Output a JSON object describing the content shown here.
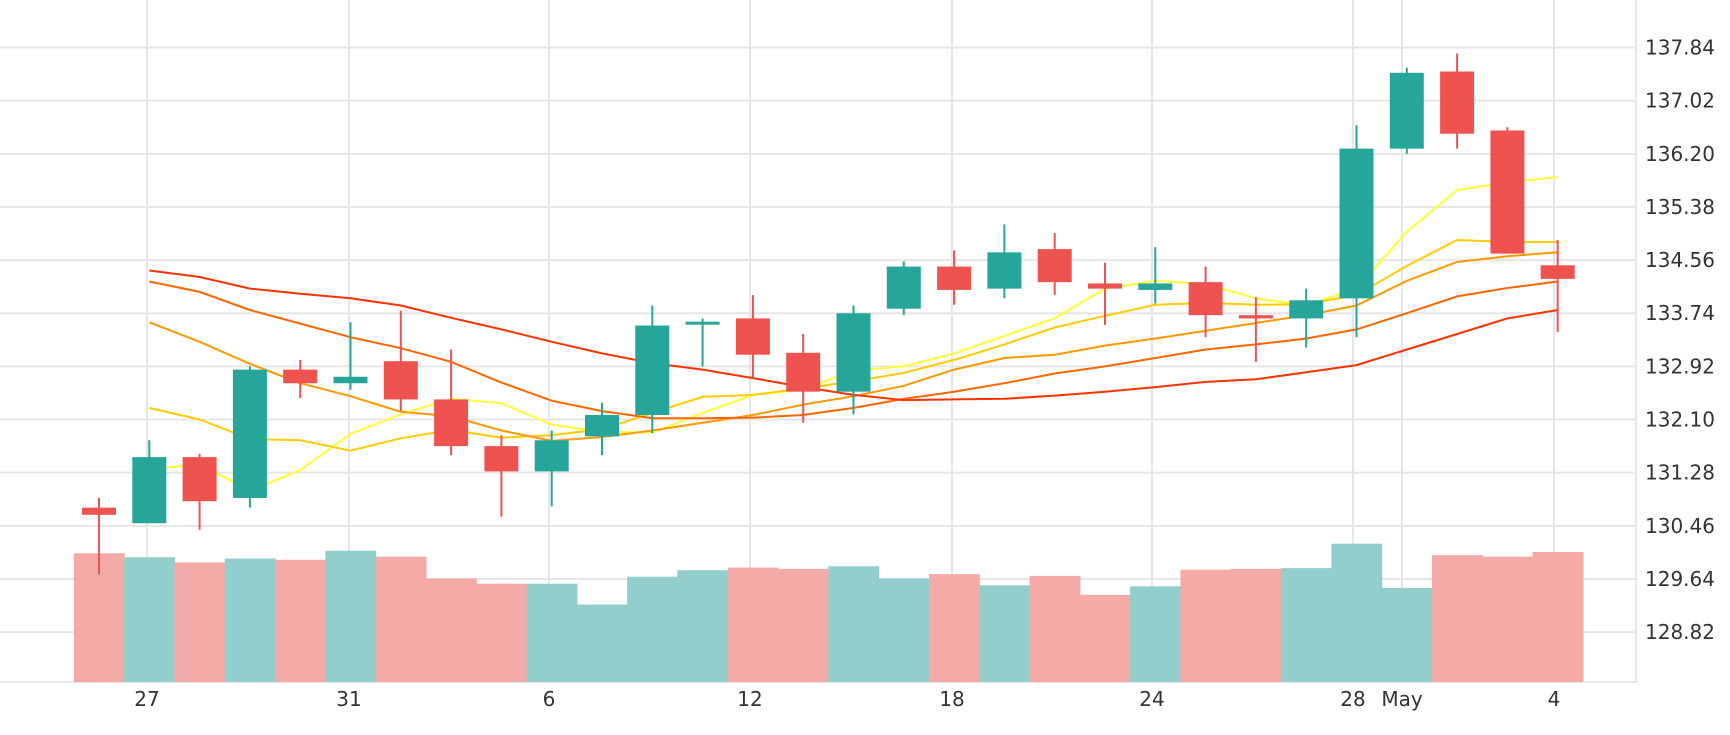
{
  "chart_data": {
    "type": "candlestick",
    "x_tick_labels": [
      "27",
      "31",
      "6",
      "12",
      "18",
      "24",
      "28",
      "May",
      "4"
    ],
    "y_tick_labels": [
      "137.84",
      "137.02",
      "136.20",
      "135.38",
      "134.56",
      "133.74",
      "132.92",
      "132.10",
      "131.28",
      "130.46",
      "129.64",
      "128.82"
    ],
    "y_ticks": [
      137.84,
      137.02,
      136.2,
      135.38,
      134.56,
      133.74,
      132.92,
      132.1,
      131.28,
      130.46,
      129.64,
      128.82
    ],
    "ylim": [
      128.05,
      138.45
    ],
    "grid": true,
    "colors": {
      "up": "#26a69a",
      "down": "#ef5350",
      "volume_up": "#92cecb",
      "volume_down": "#f4aaa7",
      "grid": "#e6e6e6",
      "ma": [
        "#ffff33",
        "#ffcc00",
        "#ff9900",
        "#ff6600",
        "#ff3300"
      ]
    },
    "candles": [
      {
        "o": 130.74,
        "h": 130.89,
        "l": 129.71,
        "c": 130.63,
        "v": 4.95
      },
      {
        "o": 130.5,
        "h": 131.78,
        "l": 130.5,
        "c": 131.52,
        "v": 4.8
      },
      {
        "o": 131.52,
        "h": 131.57,
        "l": 130.4,
        "c": 130.84,
        "v": 4.6
      },
      {
        "o": 130.89,
        "h": 132.92,
        "l": 130.74,
        "c": 132.87,
        "v": 4.75
      },
      {
        "o": 132.87,
        "h": 133.02,
        "l": 132.43,
        "c": 132.66,
        "v": 4.7
      },
      {
        "o": 132.66,
        "h": 133.6,
        "l": 132.56,
        "c": 132.76,
        "v": 5.05
      },
      {
        "o": 133.0,
        "h": 133.78,
        "l": 132.23,
        "c": 132.41,
        "v": 4.82
      },
      {
        "o": 132.41,
        "h": 133.18,
        "l": 131.55,
        "c": 131.69,
        "v": 3.98
      },
      {
        "o": 131.69,
        "h": 131.86,
        "l": 130.6,
        "c": 131.3,
        "v": 3.78
      },
      {
        "o": 131.3,
        "h": 131.93,
        "l": 130.76,
        "c": 131.78,
        "v": 3.78
      },
      {
        "o": 131.84,
        "h": 132.36,
        "l": 131.55,
        "c": 132.17,
        "v": 2.98
      },
      {
        "o": 132.17,
        "h": 133.86,
        "l": 131.89,
        "c": 133.55,
        "v": 4.05
      },
      {
        "o": 133.61,
        "h": 133.66,
        "l": 132.92,
        "c": 133.61,
        "v": 4.3
      },
      {
        "o": 133.66,
        "h": 134.02,
        "l": 132.74,
        "c": 133.1,
        "v": 4.4
      },
      {
        "o": 133.13,
        "h": 133.42,
        "l": 132.05,
        "c": 132.53,
        "v": 4.35
      },
      {
        "o": 132.53,
        "h": 133.86,
        "l": 132.18,
        "c": 133.74,
        "v": 4.45
      },
      {
        "o": 133.81,
        "h": 134.54,
        "l": 133.71,
        "c": 134.46,
        "v": 3.98
      },
      {
        "o": 134.46,
        "h": 134.71,
        "l": 133.87,
        "c": 134.1,
        "v": 4.15
      },
      {
        "o": 134.12,
        "h": 135.11,
        "l": 133.97,
        "c": 134.68,
        "v": 3.72
      },
      {
        "o": 134.73,
        "h": 134.98,
        "l": 134.02,
        "c": 134.22,
        "v": 4.08
      },
      {
        "o": 134.2,
        "h": 134.52,
        "l": 133.56,
        "c": 134.12,
        "v": 3.35
      },
      {
        "o": 134.1,
        "h": 134.76,
        "l": 133.89,
        "c": 134.2,
        "v": 3.68
      },
      {
        "o": 134.22,
        "h": 134.46,
        "l": 133.37,
        "c": 133.71,
        "v": 4.32
      },
      {
        "o": 133.71,
        "h": 133.99,
        "l": 132.99,
        "c": 133.66,
        "v": 4.35
      },
      {
        "o": 133.66,
        "h": 134.12,
        "l": 133.21,
        "c": 133.94,
        "v": 4.38
      },
      {
        "o": 133.97,
        "h": 136.64,
        "l": 133.37,
        "c": 136.28,
        "v": 5.32
      },
      {
        "o": 136.28,
        "h": 137.53,
        "l": 136.2,
        "c": 137.45,
        "v": 3.62
      },
      {
        "o": 137.47,
        "h": 137.75,
        "l": 136.28,
        "c": 136.51,
        "v": 4.88
      },
      {
        "o": 136.56,
        "h": 136.61,
        "l": 134.66,
        "c": 134.66,
        "v": 4.82
      },
      {
        "o": 134.48,
        "h": 134.87,
        "l": 133.45,
        "c": 134.27,
        "v": 5.0
      }
    ],
    "moving_averages": [
      {
        "values": [
          null,
          131.33,
          131.41,
          131.0,
          131.32,
          131.88,
          132.18,
          132.42,
          132.35,
          132.02,
          131.91,
          131.9,
          132.2,
          132.48,
          132.56,
          132.86,
          132.92,
          133.12,
          133.39,
          133.66,
          134.12,
          134.24,
          134.19,
          133.97,
          133.86,
          134.12,
          135.0,
          135.64,
          135.76,
          135.84
        ]
      },
      {
        "values": [
          null,
          132.28,
          132.1,
          131.8,
          131.78,
          131.62,
          131.81,
          131.94,
          131.82,
          131.86,
          131.95,
          132.2,
          132.45,
          132.48,
          132.58,
          132.69,
          132.82,
          133.02,
          133.26,
          133.52,
          133.7,
          133.87,
          133.9,
          133.87,
          133.88,
          134.02,
          134.47,
          134.87,
          134.84,
          134.84
        ]
      },
      {
        "values": [
          null,
          133.6,
          133.3,
          132.96,
          132.66,
          132.46,
          132.22,
          132.15,
          131.93,
          131.77,
          131.83,
          131.93,
          132.05,
          132.17,
          132.33,
          132.46,
          132.62,
          132.87,
          133.05,
          133.1,
          133.24,
          133.35,
          133.47,
          133.59,
          133.71,
          133.86,
          134.24,
          134.53,
          134.62,
          134.68
        ]
      },
      {
        "values": [
          null,
          134.23,
          134.07,
          133.79,
          133.58,
          133.37,
          133.2,
          132.99,
          132.67,
          132.39,
          132.23,
          132.12,
          132.12,
          132.13,
          132.17,
          132.28,
          132.42,
          132.53,
          132.66,
          132.81,
          132.92,
          133.05,
          133.18,
          133.26,
          133.35,
          133.49,
          133.74,
          134.0,
          134.13,
          134.23
        ]
      },
      {
        "values": [
          null,
          134.4,
          134.3,
          134.12,
          134.04,
          133.97,
          133.86,
          133.67,
          133.49,
          133.3,
          133.12,
          132.97,
          132.87,
          132.74,
          132.6,
          132.48,
          132.4,
          132.41,
          132.42,
          132.47,
          132.53,
          132.6,
          132.68,
          132.72,
          132.83,
          132.94,
          133.18,
          133.42,
          133.66,
          133.79
        ]
      }
    ]
  }
}
